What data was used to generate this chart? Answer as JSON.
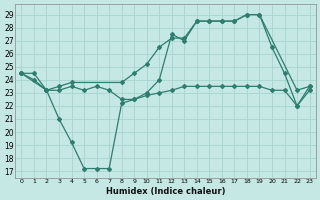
{
  "title": "",
  "xlabel": "Humidex (Indice chaleur)",
  "background_color": "#c6e8e4",
  "grid_color": "#a8d4ce",
  "line_color": "#2e7d6e",
  "x_ticks": [
    0,
    1,
    2,
    3,
    4,
    5,
    6,
    7,
    8,
    9,
    10,
    11,
    12,
    13,
    14,
    15,
    16,
    17,
    18,
    19,
    20,
    21,
    22,
    23
  ],
  "y_ticks": [
    17,
    18,
    19,
    20,
    21,
    22,
    23,
    24,
    25,
    26,
    27,
    28,
    29
  ],
  "xlim": [
    -0.5,
    23.5
  ],
  "ylim": [
    16.5,
    29.8
  ],
  "series": [
    {
      "x": [
        0,
        2,
        3,
        4,
        8,
        9,
        10,
        11,
        12,
        13,
        14,
        15,
        16,
        17,
        18,
        19,
        22,
        23
      ],
      "y": [
        24.5,
        23.2,
        23.5,
        23.8,
        23.8,
        24.5,
        25.2,
        26.5,
        27.2,
        27.2,
        28.5,
        28.5,
        28.5,
        28.5,
        29.0,
        29.0,
        23.2,
        23.5
      ]
    },
    {
      "x": [
        0,
        1,
        2,
        3,
        4,
        5,
        6,
        7,
        8,
        9,
        10,
        11,
        12,
        13,
        14,
        15,
        16,
        17,
        18,
        19,
        20,
        21,
        22,
        23
      ],
      "y": [
        24.5,
        24.5,
        23.2,
        21.0,
        19.2,
        17.2,
        17.2,
        17.2,
        22.2,
        22.5,
        23.0,
        24.0,
        27.5,
        27.0,
        28.5,
        28.5,
        28.5,
        28.5,
        29.0,
        29.0,
        26.5,
        24.5,
        22.0,
        23.2
      ]
    },
    {
      "x": [
        0,
        1,
        2,
        3,
        4,
        5,
        6,
        7,
        8,
        9,
        10,
        11,
        12,
        13,
        14,
        15,
        16,
        17,
        18,
        19,
        20,
        21,
        22,
        23
      ],
      "y": [
        24.5,
        24.0,
        23.2,
        23.2,
        23.5,
        23.2,
        23.5,
        23.2,
        22.5,
        22.5,
        22.8,
        23.0,
        23.2,
        23.5,
        23.5,
        23.5,
        23.5,
        23.5,
        23.5,
        23.5,
        23.2,
        23.2,
        22.0,
        23.5
      ]
    }
  ]
}
